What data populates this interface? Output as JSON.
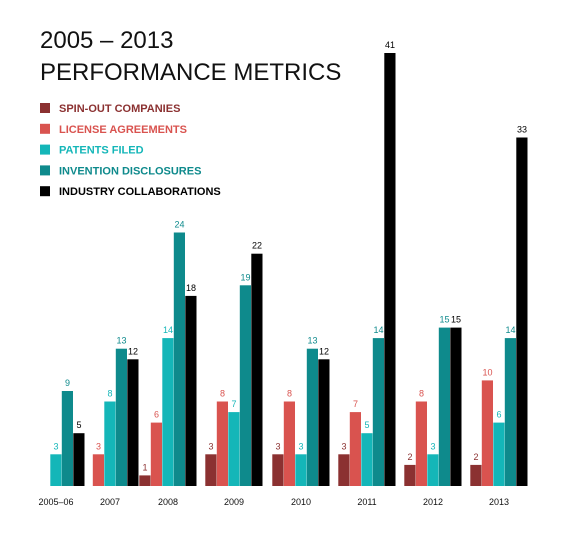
{
  "chart_data": {
    "type": "bar",
    "title": "2005 – 2013",
    "subtitle": "PERFORMANCE METRICS",
    "categories": [
      "2005–06",
      "2007",
      "2008",
      "2009",
      "2010",
      "2011",
      "2012",
      "2013"
    ],
    "series": [
      {
        "name": "SPIN-OUT COMPANIES",
        "color": "#8b3131",
        "values": [
          null,
          null,
          1,
          3,
          3,
          3,
          2,
          2
        ]
      },
      {
        "name": "LICENSE AGREEMENTS",
        "color": "#d9534f",
        "values": [
          null,
          3,
          6,
          8,
          8,
          7,
          8,
          10
        ]
      },
      {
        "name": "PATENTS FILED",
        "color": "#14b6b8",
        "values": [
          3,
          8,
          14,
          7,
          3,
          5,
          3,
          6
        ]
      },
      {
        "name": "INVENTION DISCLOSURES",
        "color": "#0e8a8c",
        "values": [
          9,
          13,
          24,
          19,
          13,
          14,
          15,
          14
        ]
      },
      {
        "name": "INDUSTRY COLLABORATIONS",
        "color": "#000000",
        "values": [
          5,
          12,
          18,
          22,
          12,
          41,
          15,
          33
        ]
      }
    ],
    "ylim": [
      0,
      41
    ],
    "legend": "top-left",
    "grid": false,
    "xlabel": "",
    "ylabel": ""
  }
}
